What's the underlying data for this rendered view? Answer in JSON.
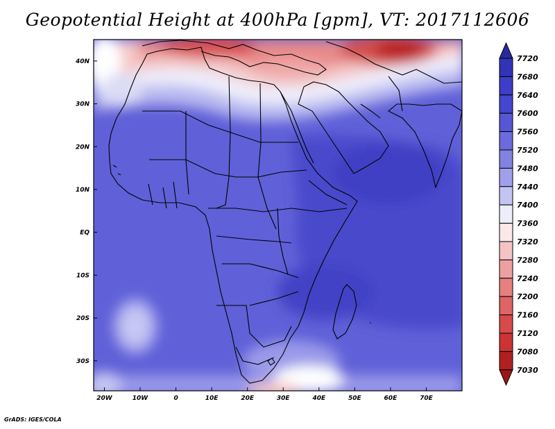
{
  "title": "Geopotential Height at 400hPa [gpm], VT: 2017112606",
  "footer": "GrADS: IGES/COLA",
  "map": {
    "lon_range": [
      -23,
      80
    ],
    "lat_range": [
      -37,
      45
    ],
    "x_ticks": [
      {
        "lon": -20,
        "label": "20W"
      },
      {
        "lon": -10,
        "label": "10W"
      },
      {
        "lon": 0,
        "label": "0"
      },
      {
        "lon": 10,
        "label": "10E"
      },
      {
        "lon": 20,
        "label": "20E"
      },
      {
        "lon": 30,
        "label": "30E"
      },
      {
        "lon": 40,
        "label": "40E"
      },
      {
        "lon": 50,
        "label": "50E"
      },
      {
        "lon": 60,
        "label": "60E"
      },
      {
        "lon": 70,
        "label": "70E"
      }
    ],
    "y_ticks": [
      {
        "lat": 40,
        "label": "40N"
      },
      {
        "lat": 30,
        "label": "30N"
      },
      {
        "lat": 20,
        "label": "20N"
      },
      {
        "lat": 10,
        "label": "10N"
      },
      {
        "lat": 0,
        "label": "EQ"
      },
      {
        "lat": -10,
        "label": "10S"
      },
      {
        "lat": -20,
        "label": "20S"
      },
      {
        "lat": -30,
        "label": "30S"
      }
    ]
  },
  "colorbar": {
    "levels": [
      "7720",
      "7680",
      "7640",
      "7600",
      "7560",
      "7520",
      "7480",
      "7440",
      "7400",
      "7360",
      "7320",
      "7280",
      "7240",
      "7200",
      "7160",
      "7120",
      "7080",
      "7030"
    ],
    "colors": [
      "#2a2aa0",
      "#3333b8",
      "#3d3dc8",
      "#4545cf",
      "#5757d6",
      "#6b6bdc",
      "#8282e2",
      "#a0a0ea",
      "#c4c4f2",
      "#eeeefb",
      "#fbe8e8",
      "#f4c4c4",
      "#eda0a0",
      "#e68080",
      "#df6464",
      "#d84a4a",
      "#cc3333",
      "#b02020",
      "#961818"
    ]
  }
}
